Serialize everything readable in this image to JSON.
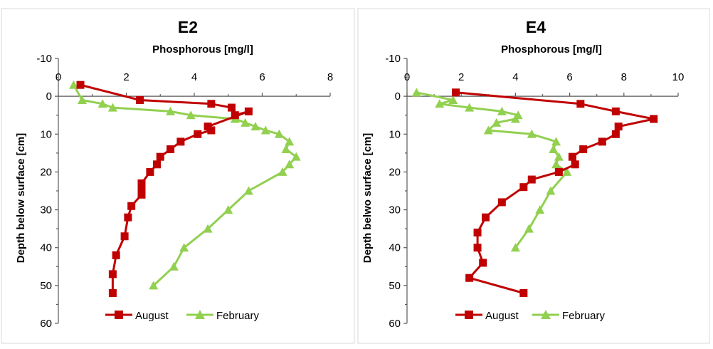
{
  "colors": {
    "august": "#c00000",
    "february": "#92d050"
  },
  "chart_data": [
    {
      "type": "line",
      "title": "E2",
      "xlabel": "Phosphorous [mg/l]",
      "ylabel": "Depth below surface [cm]",
      "xlim": [
        0,
        8
      ],
      "ylim": [
        -10,
        60
      ],
      "y_inverted": true,
      "x_ticks": [
        "0",
        "2",
        "4",
        "6",
        "8"
      ],
      "y_ticks": [
        "-10",
        "0",
        "10",
        "20",
        "30",
        "40",
        "50",
        "60"
      ],
      "legend": [
        "August",
        "February"
      ],
      "legend_position": "bottom",
      "series": [
        {
          "name": "August",
          "marker": "square",
          "x": [
            0.65,
            2.4,
            4.5,
            5.1,
            5.2,
            5.6,
            4.4,
            4.5,
            4.1,
            3.6,
            3.3,
            3.0,
            2.9,
            2.7,
            2.45,
            2.45,
            2.45,
            2.15,
            2.05,
            1.95,
            1.7,
            1.6,
            1.6
          ],
          "y": [
            -3,
            1,
            2,
            3,
            5,
            4,
            8,
            9,
            10,
            12,
            14,
            16,
            18,
            20,
            23,
            24,
            26,
            29,
            32,
            37,
            42,
            47,
            52
          ]
        },
        {
          "name": "February",
          "marker": "triangle",
          "x": [
            0.45,
            0.7,
            1.3,
            1.6,
            3.3,
            3.9,
            5.2,
            5.5,
            5.8,
            6.1,
            6.5,
            6.8,
            6.7,
            7.0,
            6.8,
            6.6,
            5.6,
            5.0,
            4.4,
            3.7,
            3.4,
            2.8
          ],
          "y": [
            -3,
            1,
            2,
            3,
            4,
            5,
            6,
            7,
            8,
            9,
            10,
            12,
            14,
            16,
            18,
            20,
            25,
            30,
            35,
            40,
            45,
            50
          ]
        }
      ]
    },
    {
      "type": "line",
      "title": "E4",
      "xlabel": "Phosphorous [mg/l]",
      "ylabel": "Depth belwo surface [cm]",
      "xlim": [
        0,
        10
      ],
      "ylim": [
        -10,
        60
      ],
      "y_inverted": true,
      "x_ticks": [
        "0",
        "2",
        "4",
        "6",
        "8",
        "10"
      ],
      "y_ticks": [
        "-10",
        "0",
        "10",
        "20",
        "30",
        "40",
        "50",
        "60"
      ],
      "legend": [
        "August",
        "February"
      ],
      "legend_position": "bottom",
      "series": [
        {
          "name": "August",
          "marker": "square",
          "x": [
            1.8,
            6.4,
            7.7,
            9.1,
            7.8,
            7.7,
            7.2,
            6.5,
            6.1,
            6.2,
            5.6,
            4.6,
            4.3,
            3.5,
            2.9,
            2.6,
            2.6,
            2.8,
            2.3,
            4.3
          ],
          "y": [
            -1,
            2,
            4,
            6,
            8,
            10,
            12,
            14,
            16,
            18,
            20,
            22,
            24,
            28,
            32,
            36,
            40,
            44,
            48,
            52
          ]
        },
        {
          "name": "February",
          "marker": "triangle",
          "x": [
            0.35,
            1.7,
            1.2,
            2.3,
            3.5,
            4.1,
            4.0,
            3.3,
            3.0,
            4.6,
            5.5,
            5.4,
            5.6,
            5.5,
            5.9,
            5.3,
            4.9,
            4.5,
            4.0
          ],
          "y": [
            -1,
            1,
            2,
            3,
            4,
            5,
            6,
            7,
            9,
            10,
            12,
            14,
            16,
            18,
            20,
            25,
            30,
            35,
            40
          ]
        }
      ]
    }
  ]
}
